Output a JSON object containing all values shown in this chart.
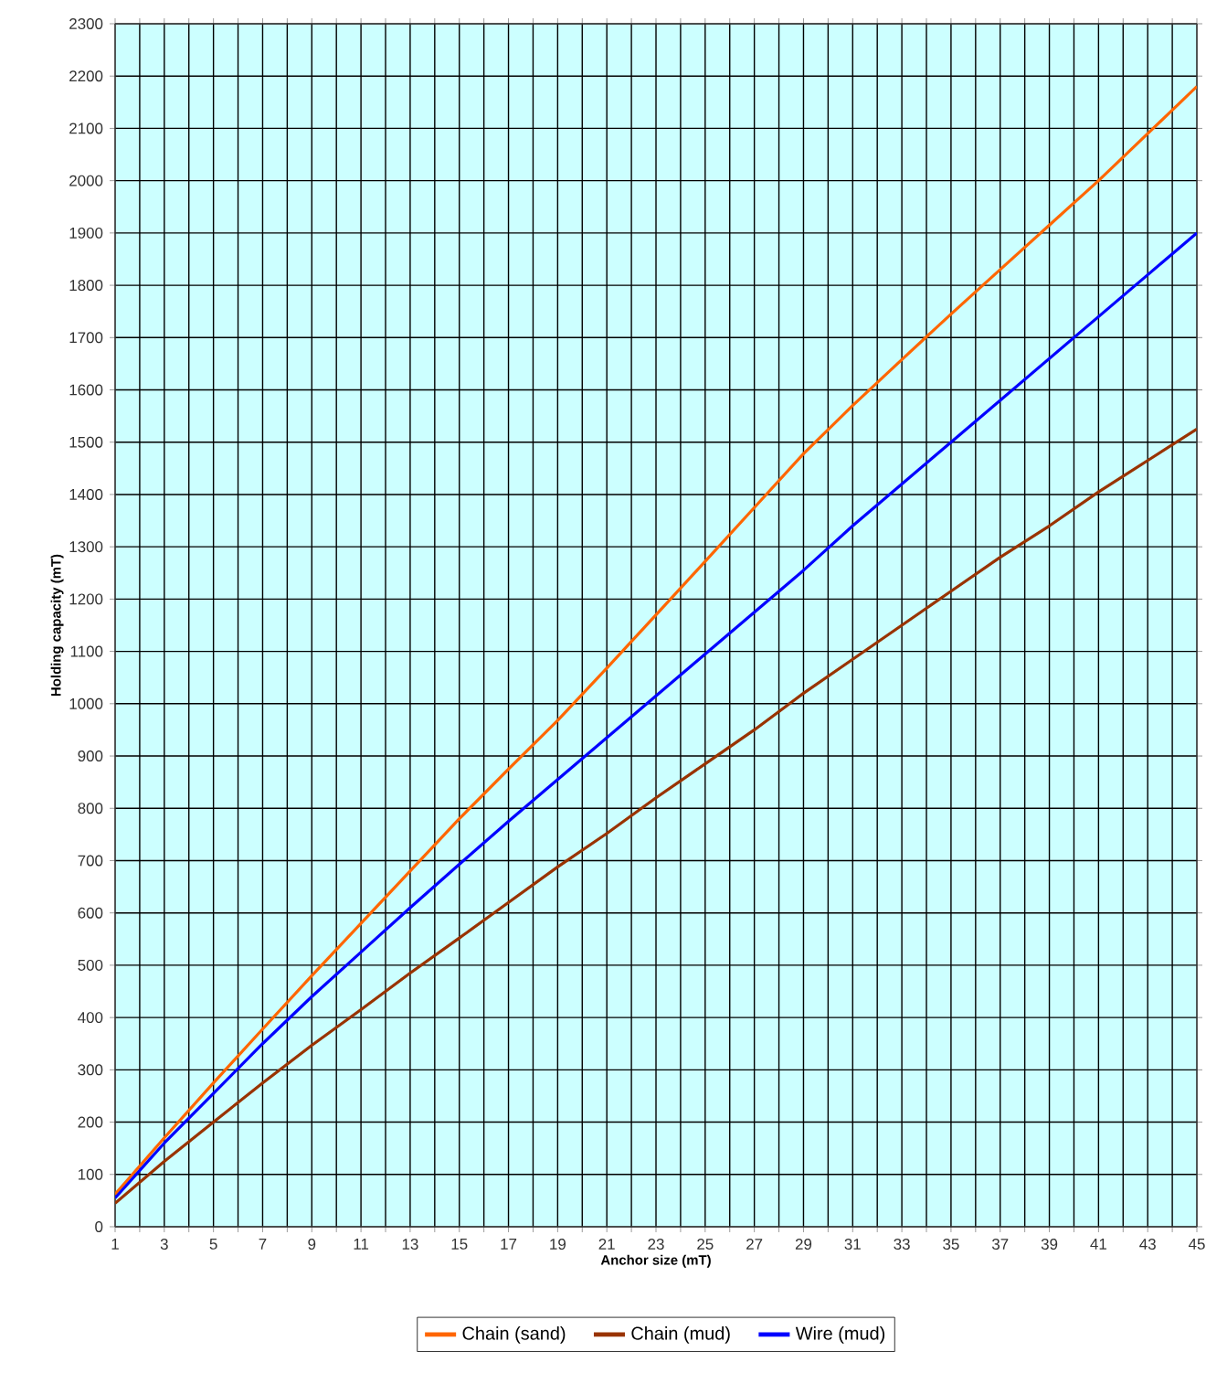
{
  "chart_data": {
    "type": "line",
    "xlabel": "Anchor size (mT)",
    "ylabel": "Holding capacity (mT)",
    "x": [
      1,
      3,
      5,
      7,
      9,
      11,
      13,
      15,
      17,
      19,
      21,
      23,
      25,
      27,
      29,
      31,
      33,
      35,
      37,
      39,
      41,
      43,
      45
    ],
    "series": [
      {
        "name": "Chain (sand)",
        "color": "#ff6600",
        "values": [
          62,
          170,
          275,
          378,
          480,
          580,
          680,
          780,
          875,
          968,
          1068,
          1170,
          1272,
          1375,
          1478,
          1570,
          1658,
          1745,
          1830,
          1915,
          2000,
          2090,
          2180
        ]
      },
      {
        "name": "Chain (mud)",
        "color": "#993300",
        "values": [
          45,
          125,
          200,
          275,
          347,
          415,
          485,
          552,
          620,
          688,
          752,
          820,
          885,
          950,
          1020,
          1085,
          1150,
          1215,
          1280,
          1340,
          1405,
          1465,
          1525
        ]
      },
      {
        "name": "Wire (mud)",
        "color": "#0000ff",
        "values": [
          55,
          160,
          255,
          350,
          440,
          525,
          610,
          693,
          775,
          855,
          935,
          1015,
          1095,
          1175,
          1255,
          1340,
          1420,
          1500,
          1580,
          1660,
          1740,
          1820,
          1900
        ]
      }
    ],
    "xlim": [
      1,
      45
    ],
    "ylim": [
      0,
      2300
    ],
    "xticks": [
      1,
      {
        "value": 2,
        "label": null
      },
      3,
      {
        "value": 4,
        "label": null
      },
      5,
      {
        "value": 6,
        "label": null
      },
      7,
      {
        "value": 8,
        "label": null
      },
      9,
      {
        "value": 10,
        "label": null
      },
      11,
      {
        "value": 12,
        "label": null
      },
      13,
      {
        "value": 14,
        "label": null
      },
      15,
      {
        "value": 16,
        "label": null
      },
      17,
      {
        "value": 18,
        "label": null
      },
      19,
      {
        "value": 20,
        "label": null
      },
      21,
      {
        "value": 22,
        "label": null
      },
      23,
      {
        "value": 24,
        "label": null
      },
      25,
      {
        "value": 26,
        "label": null
      },
      27,
      {
        "value": 28,
        "label": null
      },
      29,
      {
        "value": 30,
        "label": null
      },
      31,
      {
        "value": 32,
        "label": null
      },
      33,
      {
        "value": 34,
        "label": null
      },
      35,
      {
        "value": 36,
        "label": null
      },
      37,
      {
        "value": 38,
        "label": null
      },
      39,
      {
        "value": 40,
        "label": null
      },
      41,
      {
        "value": 42,
        "label": null
      },
      43,
      {
        "value": 44,
        "label": null
      },
      45
    ],
    "yticks": [
      0,
      100,
      200,
      300,
      400,
      500,
      600,
      700,
      800,
      900,
      1000,
      1100,
      1200,
      1300,
      1400,
      1500,
      1600,
      1700,
      1800,
      1900,
      2000,
      2100,
      2200,
      2300
    ],
    "grid": true,
    "legend": "bottom",
    "marker": "none",
    "line_style": "solid"
  }
}
